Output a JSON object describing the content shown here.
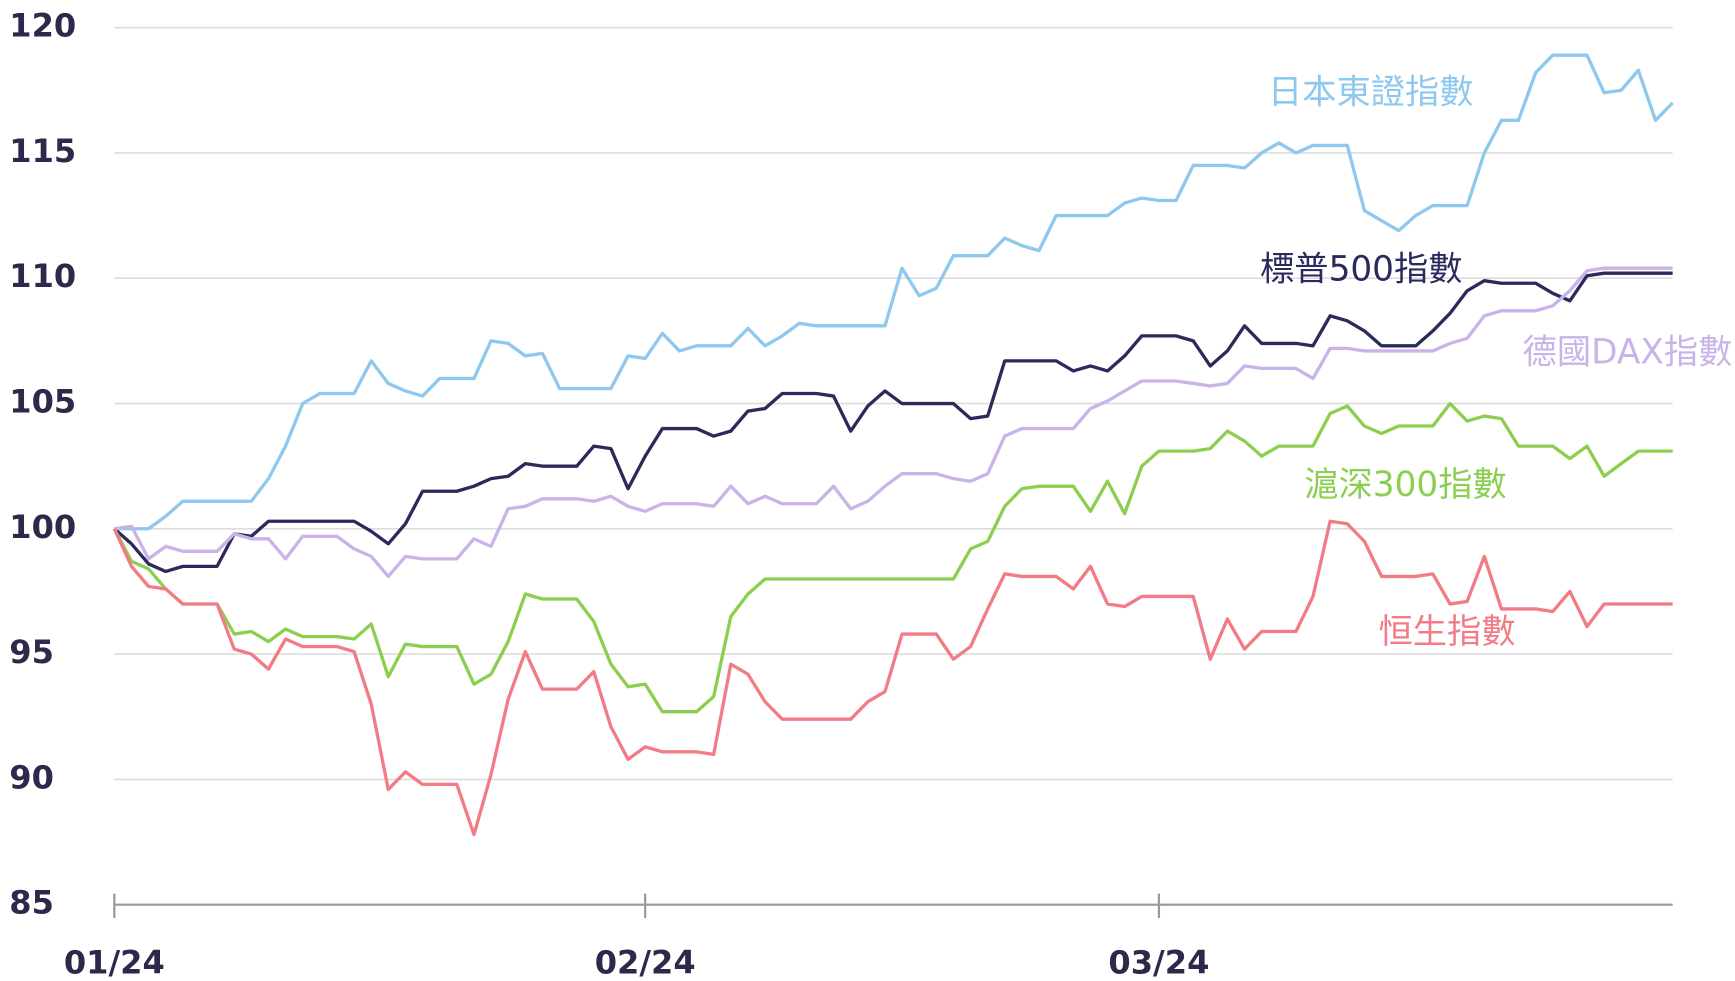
{
  "chart_data": {
    "type": "line",
    "categories": [
      "01/24",
      null,
      null,
      null,
      null,
      null,
      null,
      null,
      null,
      null,
      null,
      null,
      null,
      null,
      null,
      null,
      null,
      null,
      null,
      null,
      null,
      null,
      null,
      null,
      null,
      null,
      null,
      null,
      null,
      null,
      null,
      "02/24",
      null,
      null,
      null,
      null,
      null,
      null,
      null,
      null,
      null,
      null,
      null,
      null,
      null,
      null,
      null,
      null,
      null,
      null,
      null,
      null,
      null,
      null,
      null,
      null,
      null,
      null,
      null,
      null,
      null,
      "03/24",
      null,
      null,
      null,
      null,
      null,
      null,
      null,
      null,
      null,
      null,
      null,
      null,
      null,
      null,
      null,
      null,
      null,
      null,
      null,
      null,
      null,
      null,
      null,
      null,
      null,
      null,
      null,
      null,
      null,
      null
    ],
    "ylim": [
      85,
      120
    ],
    "yticks": [
      85,
      90,
      95,
      100,
      105,
      110,
      115,
      120
    ],
    "grid": true,
    "series": [
      {
        "name": "日本東證指數",
        "color": "#8ec8ef",
        "values": [
          100,
          100,
          100,
          100.5,
          101.1,
          101.1,
          101.1,
          101.1,
          101.1,
          102,
          103.3,
          105,
          105.4,
          105.4,
          105.4,
          106.7,
          105.8,
          105.5,
          105.3,
          106,
          106,
          106,
          107.5,
          107.4,
          106.9,
          107,
          105.6,
          105.6,
          105.6,
          105.6,
          106.9,
          106.8,
          107.8,
          107.1,
          107.3,
          107.3,
          107.3,
          108,
          107.3,
          107.7,
          108.2,
          108.1,
          108.1,
          108.1,
          108.1,
          108.1,
          110.4,
          109.3,
          109.6,
          110.9,
          110.9,
          110.9,
          111.6,
          111.3,
          111.1,
          112.5,
          112.5,
          112.5,
          112.5,
          113,
          113.2,
          113.1,
          113.1,
          114.5,
          114.5,
          114.5,
          114.4,
          115,
          115.4,
          115,
          115.3,
          115.3,
          115.3,
          112.7,
          112.3,
          111.9,
          112.5,
          112.9,
          112.9,
          112.9,
          115,
          116.3,
          116.3,
          118.2,
          118.9,
          118.9,
          118.9,
          117.4,
          117.5,
          118.3,
          116.3,
          117
        ]
      },
      {
        "name": "標普500指數",
        "color": "#2b2a5c",
        "values": [
          100,
          99.4,
          98.6,
          98.3,
          98.5,
          98.5,
          98.5,
          99.8,
          99.7,
          100.3,
          100.3,
          100.3,
          100.3,
          100.3,
          100.3,
          99.9,
          99.4,
          100.2,
          101.5,
          101.5,
          101.5,
          101.7,
          102,
          102.1,
          102.6,
          102.5,
          102.5,
          102.5,
          103.3,
          103.2,
          101.6,
          102.9,
          104,
          104,
          104,
          103.7,
          103.9,
          104.7,
          104.8,
          105.4,
          105.4,
          105.4,
          105.3,
          103.9,
          104.9,
          105.5,
          105,
          105,
          105,
          105,
          104.4,
          104.5,
          106.7,
          106.7,
          106.7,
          106.7,
          106.3,
          106.5,
          106.3,
          106.9,
          107.7,
          107.7,
          107.7,
          107.5,
          106.5,
          107.1,
          108.1,
          107.4,
          107.4,
          107.4,
          107.3,
          108.5,
          108.3,
          107.9,
          107.3,
          107.3,
          107.3,
          107.9,
          108.6,
          109.5,
          109.9,
          109.8,
          109.8,
          109.8,
          109.4,
          109.1,
          110.1,
          110.2,
          110.2,
          110.2,
          110.2,
          110.2
        ]
      },
      {
        "name": "德國DAX指數",
        "color": "#c9b3e8",
        "values": [
          100,
          100.1,
          98.8,
          99.3,
          99.1,
          99.1,
          99.1,
          99.8,
          99.6,
          99.6,
          98.8,
          99.7,
          99.7,
          99.7,
          99.2,
          98.9,
          98.1,
          98.9,
          98.8,
          98.8,
          98.8,
          99.6,
          99.3,
          100.8,
          100.9,
          101.2,
          101.2,
          101.2,
          101.1,
          101.3,
          100.9,
          100.7,
          101,
          101,
          101,
          100.9,
          101.7,
          101,
          101.3,
          101,
          101,
          101,
          101.7,
          100.8,
          101.1,
          101.7,
          102.2,
          102.2,
          102.2,
          102,
          101.9,
          102.2,
          103.7,
          104,
          104,
          104,
          104,
          104.8,
          105.1,
          105.5,
          105.9,
          105.9,
          105.9,
          105.8,
          105.7,
          105.8,
          106.5,
          106.4,
          106.4,
          106.4,
          106,
          107.2,
          107.2,
          107.1,
          107.1,
          107.1,
          107.1,
          107.1,
          107.4,
          107.6,
          108.5,
          108.7,
          108.7,
          108.7,
          108.9,
          109.5,
          110.3,
          110.4,
          110.4,
          110.4,
          110.4,
          110.4
        ]
      },
      {
        "name": "滬深300指數",
        "color": "#8ccf50",
        "values": [
          100,
          98.7,
          98.4,
          97.6,
          97,
          97,
          97,
          95.8,
          95.9,
          95.5,
          96,
          95.7,
          95.7,
          95.7,
          95.6,
          96.2,
          94.1,
          95.4,
          95.3,
          95.3,
          95.3,
          93.8,
          94.2,
          95.5,
          97.4,
          97.2,
          97.2,
          97.2,
          96.3,
          94.6,
          93.7,
          93.8,
          92.7,
          92.7,
          92.7,
          93.3,
          96.5,
          97.4,
          98,
          98,
          98,
          98,
          98,
          98,
          98,
          98,
          98,
          98,
          98,
          98,
          99.2,
          99.5,
          100.9,
          101.6,
          101.7,
          101.7,
          101.7,
          100.7,
          101.9,
          100.6,
          102.5,
          103.1,
          103.1,
          103.1,
          103.2,
          103.9,
          103.5,
          102.9,
          103.3,
          103.3,
          103.3,
          104.6,
          104.9,
          104.1,
          103.8,
          104.1,
          104.1,
          104.1,
          105,
          104.3,
          104.5,
          104.4,
          103.3,
          103.3,
          103.3,
          102.8,
          103.3,
          102.1,
          102.6,
          103.1,
          103.1,
          103.1
        ]
      },
      {
        "name": "恒生指數",
        "color": "#f27b85",
        "values": [
          100,
          98.5,
          97.7,
          97.6,
          97,
          97,
          97,
          95.2,
          95,
          94.4,
          95.6,
          95.3,
          95.3,
          95.3,
          95.1,
          93,
          89.6,
          90.3,
          89.8,
          89.8,
          89.8,
          87.8,
          90.2,
          93.2,
          95.1,
          93.6,
          93.6,
          93.6,
          94.3,
          92.1,
          90.8,
          91.3,
          91.1,
          91.1,
          91.1,
          91,
          94.6,
          94.2,
          93.1,
          92.4,
          92.4,
          92.4,
          92.4,
          92.4,
          93.1,
          93.5,
          95.8,
          95.8,
          95.8,
          94.8,
          95.3,
          96.8,
          98.2,
          98.1,
          98.1,
          98.1,
          97.6,
          98.5,
          97,
          96.9,
          97.3,
          97.3,
          97.3,
          97.3,
          94.8,
          96.4,
          95.2,
          95.9,
          95.9,
          95.9,
          97.3,
          100.3,
          100.2,
          99.5,
          98.1,
          98.1,
          98.1,
          98.2,
          97,
          97.1,
          98.9,
          96.8,
          96.8,
          96.8,
          96.7,
          97.5,
          96.1,
          97,
          97,
          97,
          97,
          97
        ]
      }
    ]
  }
}
